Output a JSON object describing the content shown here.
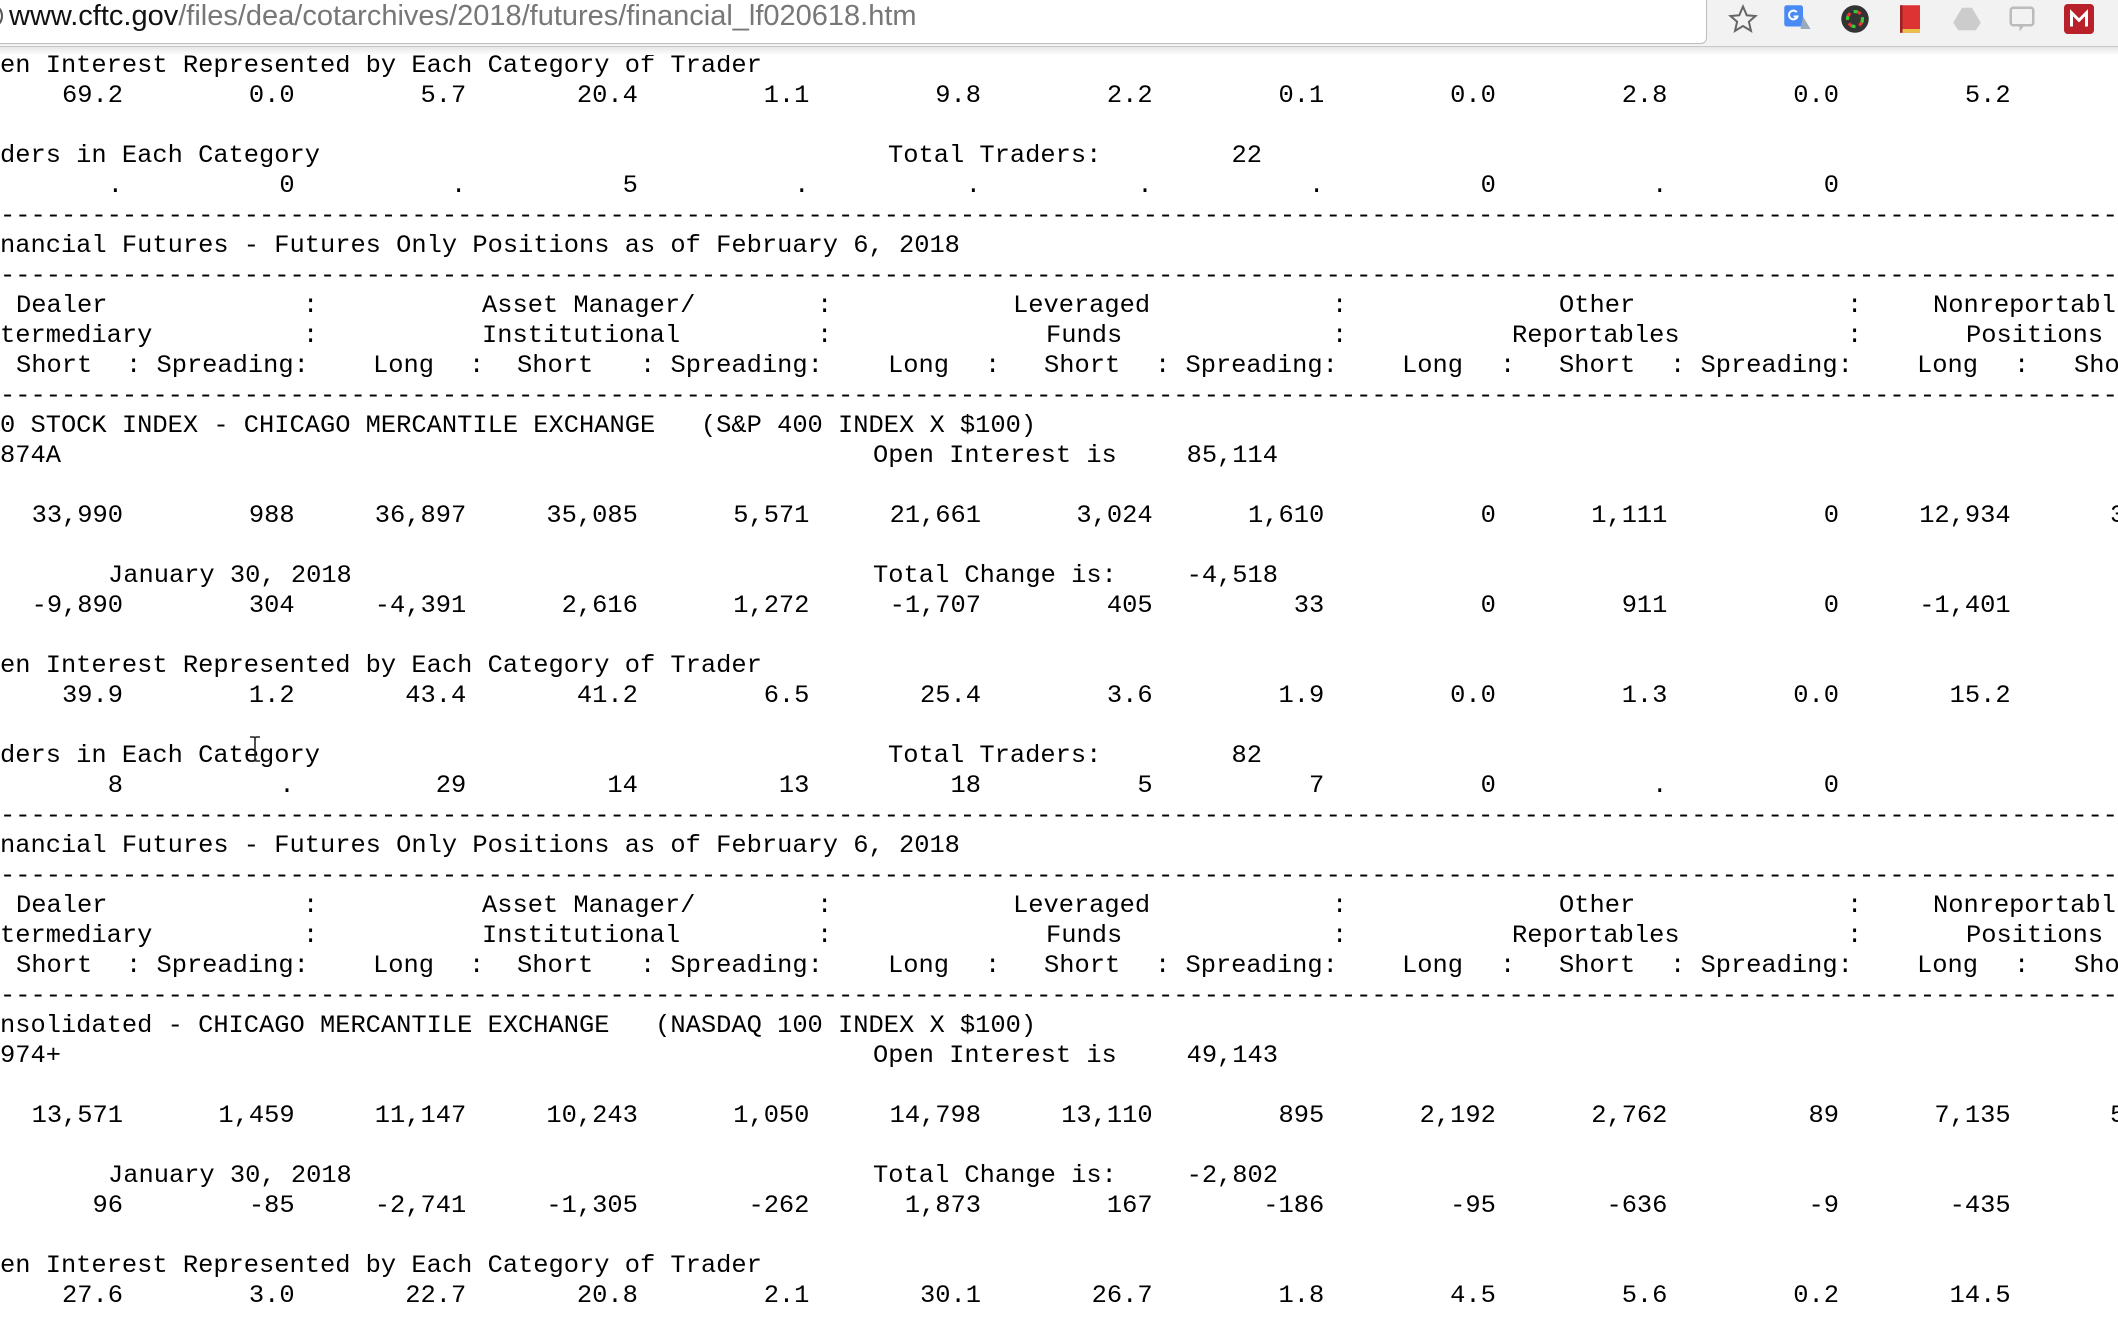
{
  "browser": {
    "url_host": "www.cftc.gov",
    "url_path": "/files/dea/cotarchives/2018/futures/financial_lf020618.htm",
    "icons": [
      "bookmark-star-icon",
      "google-translate-icon",
      "color-picker-icon",
      "red-book-icon",
      "drive-icon",
      "chat-icon",
      "red-m-extension-icon"
    ]
  },
  "divider": "----------------------------------------------------------------------------------------------------------------------------------------------------",
  "top_fragment": {
    "pct_title": "en Interest Represented by Each Category of Trader",
    "pct_values": [
      "69.2",
      "0.0",
      "5.7",
      "20.4",
      "1.1",
      "9.8",
      "2.2",
      "0.1",
      "0.0",
      "2.8",
      "0.0",
      "5.2"
    ],
    "traders_title": "ders in Each Category",
    "total_traders_label": "Total Traders:",
    "total_traders": "22",
    "traders_values": [
      ".",
      "0",
      ".",
      "5",
      ".",
      ".",
      ".",
      ".",
      "0",
      ".",
      "0"
    ]
  },
  "column_header": {
    "report_title": "nancial Futures - Futures Only Positions as of February 6, 2018",
    "row1": [
      "Dealer",
      ":",
      "Asset Manager/",
      ":",
      "Leveraged",
      ":",
      "Other",
      ":",
      "Nonreportabl"
    ],
    "row2": [
      "termediary",
      ":",
      "Institutional",
      ":",
      "Funds",
      ":",
      "Reportables",
      ":",
      "Positions"
    ],
    "row3": [
      "Short",
      ": Spreading:",
      "Long",
      ":",
      "Short",
      ": Spreading:",
      "Long",
      ":",
      "Short",
      ": Spreading:",
      "Long",
      ":",
      "Short",
      ": Spreading:",
      "Long",
      ":",
      "Sho"
    ]
  },
  "reports": [
    {
      "market": "0 STOCK INDEX - CHICAGO MERCANTILE EXCHANGE   (S&P 400 INDEX X $100)",
      "code": "874A",
      "open_interest_label": "Open Interest is",
      "open_interest": "85,114",
      "positions": [
        "33,990",
        "988",
        "36,897",
        "35,085",
        "5,571",
        "21,661",
        "3,024",
        "1,610",
        "0",
        "1,111",
        "0",
        "12,934",
        "3"
      ],
      "change_date": "January 30, 2018",
      "total_change_label": "Total Change is:",
      "total_change": "-4,518",
      "changes": [
        "-9,890",
        "304",
        "-4,391",
        "2,616",
        "1,272",
        "-1,707",
        "405",
        "33",
        "0",
        "911",
        "0",
        "-1,401"
      ],
      "pct_title": "en Interest Represented by Each Category of Trader",
      "pct_values": [
        "39.9",
        "1.2",
        "43.4",
        "41.2",
        "6.5",
        "25.4",
        "3.6",
        "1.9",
        "0.0",
        "1.3",
        "0.0",
        "15.2"
      ],
      "traders_title": "ders in Each Category",
      "total_traders_label": "Total Traders:",
      "total_traders": "82",
      "traders_values": [
        "8",
        ".",
        "29",
        "14",
        "13",
        "18",
        "5",
        "7",
        "0",
        ".",
        "0"
      ]
    },
    {
      "market": "nsolidated - CHICAGO MERCANTILE EXCHANGE   (NASDAQ 100 INDEX X $100)",
      "code": "974+",
      "open_interest_label": "Open Interest is",
      "open_interest": "49,143",
      "positions": [
        "13,571",
        "1,459",
        "11,147",
        "10,243",
        "1,050",
        "14,798",
        "13,110",
        "895",
        "2,192",
        "2,762",
        "89",
        "7,135",
        "5"
      ],
      "change_date": "January 30, 2018",
      "total_change_label": "Total Change is:",
      "total_change": "-2,802",
      "changes": [
        "96",
        "-85",
        "-2,741",
        "-1,305",
        "-262",
        "1,873",
        "167",
        "-186",
        "-95",
        "-636",
        "-9",
        "-435"
      ],
      "pct_title": "en Interest Represented by Each Category of Trader",
      "pct_values": [
        "27.6",
        "3.0",
        "22.7",
        "20.8",
        "2.1",
        "30.1",
        "26.7",
        "1.8",
        "4.5",
        "5.6",
        "0.2",
        "14.5"
      ]
    }
  ]
}
